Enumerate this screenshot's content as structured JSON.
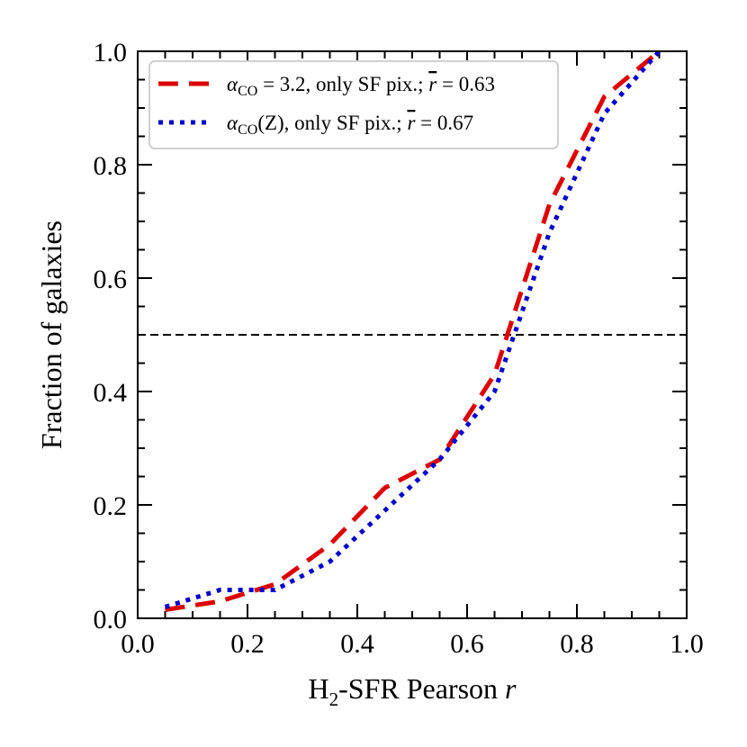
{
  "chart_data": {
    "type": "line",
    "xlabel": {
      "main": "H",
      "sub": "2",
      "rest": "-SFR Pearson ",
      "var": "r"
    },
    "ylabel": "Fraction of galaxies",
    "xlim": [
      0.0,
      1.0
    ],
    "ylim": [
      0.0,
      1.0
    ],
    "xticks": [
      "0.0",
      "0.2",
      "0.4",
      "0.6",
      "0.8",
      "1.0"
    ],
    "yticks": [
      "0.0",
      "0.2",
      "0.4",
      "0.6",
      "0.8",
      "1.0"
    ],
    "hline": 0.5,
    "grid": false,
    "legend_position": "top-left",
    "series": [
      {
        "name": "alpha_CO=3.2, only SF pix.; r=0.63",
        "legend": {
          "sym": "α",
          "sub": "CO",
          "mid": " = 3.2, only SF pix.; ",
          "rbar": "r",
          "tail": " = 0.63"
        },
        "color": "#dd0000",
        "style": "dashed",
        "x": [
          0.05,
          0.15,
          0.25,
          0.35,
          0.45,
          0.55,
          0.65,
          0.75,
          0.85,
          0.95
        ],
        "y": [
          0.015,
          0.03,
          0.06,
          0.13,
          0.23,
          0.28,
          0.43,
          0.73,
          0.92,
          1.0
        ]
      },
      {
        "name": "alpha_CO(Z), only SF pix.; r=0.67",
        "legend": {
          "sym": "α",
          "sub": "CO",
          "mid": "(Z), only SF pix.; ",
          "rbar": "r",
          "tail": " = 0.67"
        },
        "color": "#0000cc",
        "style": "dotted",
        "x": [
          0.05,
          0.15,
          0.25,
          0.35,
          0.45,
          0.55,
          0.65,
          0.75,
          0.85,
          0.95
        ],
        "y": [
          0.02,
          0.05,
          0.05,
          0.1,
          0.19,
          0.28,
          0.4,
          0.68,
          0.89,
          1.0
        ]
      }
    ]
  }
}
